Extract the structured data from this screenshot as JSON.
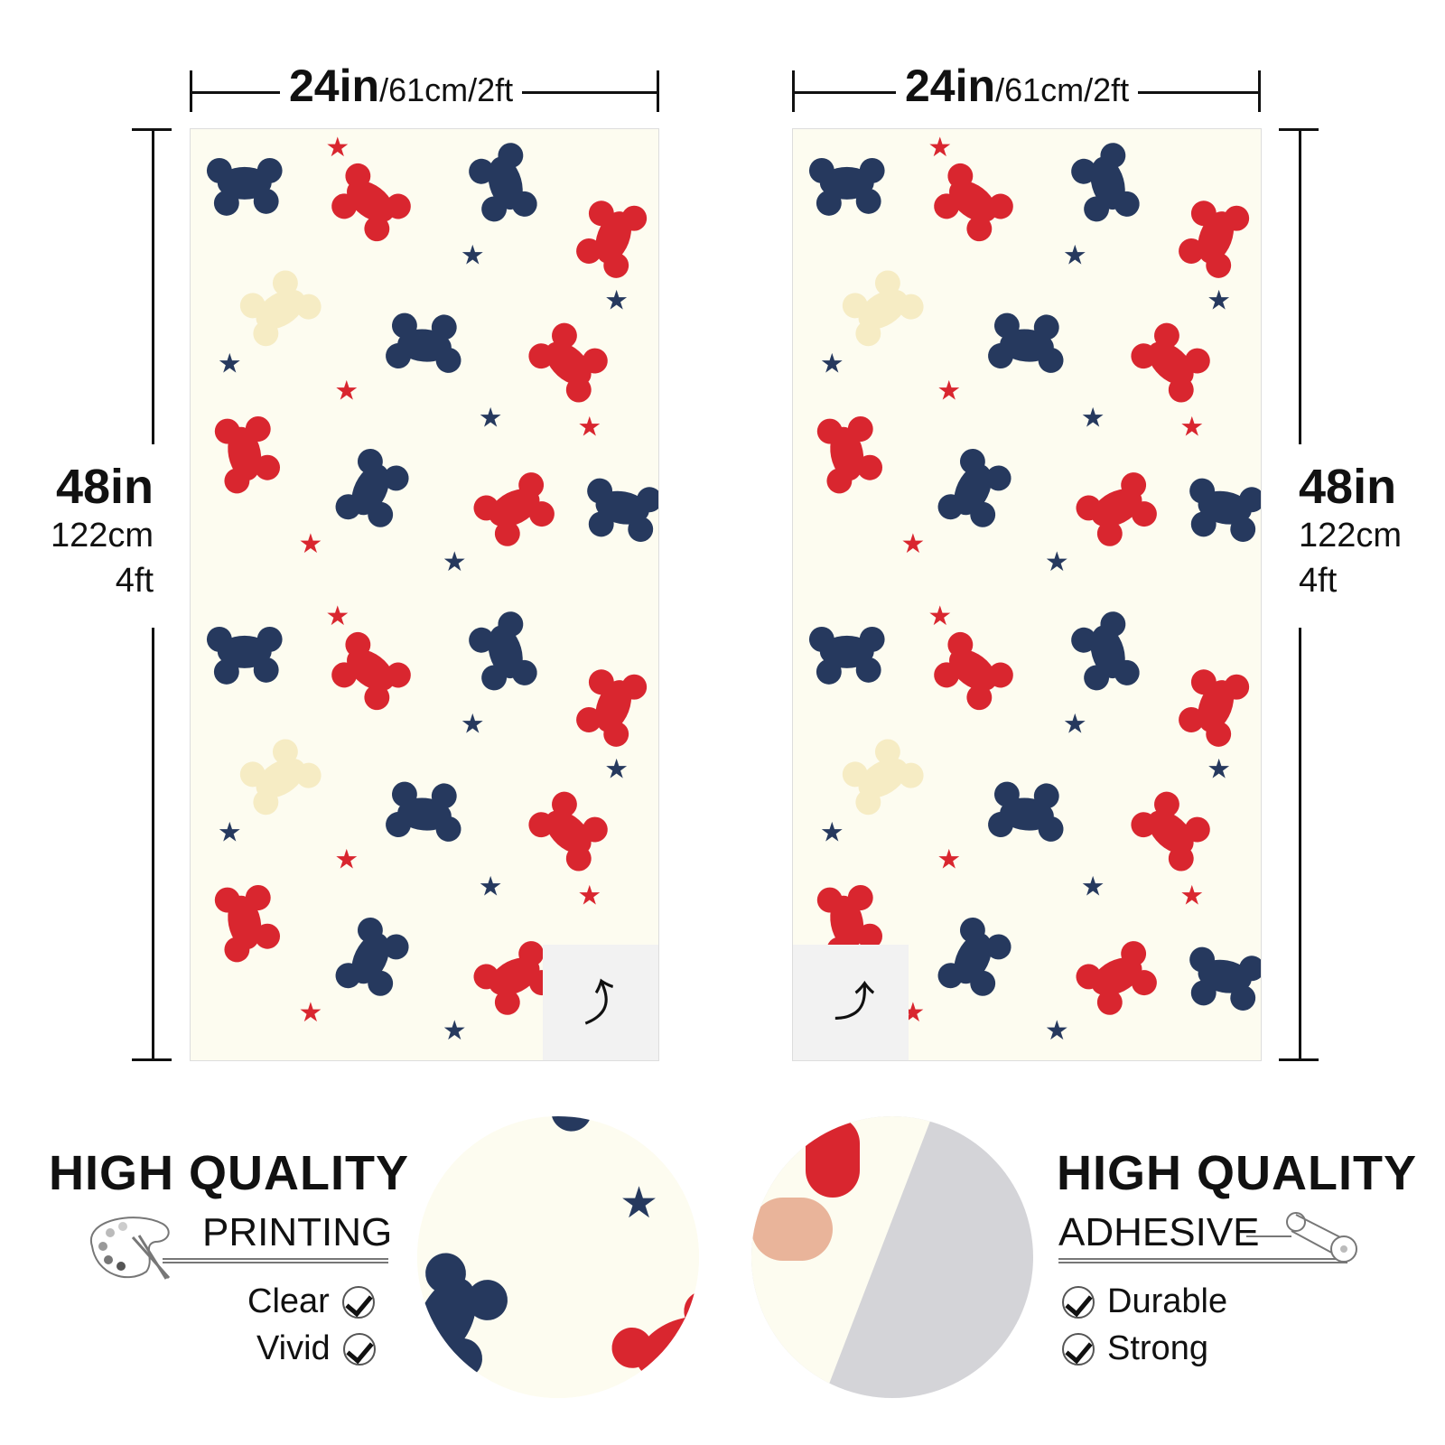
{
  "dimensions": {
    "width_main": "24in",
    "width_sub": "/61cm/2ft",
    "height_main": "48in",
    "height_cm": "122cm",
    "height_ft": "4ft"
  },
  "features": {
    "printing": {
      "title": "HIGH QUALITY",
      "subtitle": "PRINTING",
      "checks": [
        "Clear",
        "Vivid"
      ],
      "icon": "palette-icon"
    },
    "adhesive": {
      "title": "HIGH QUALITY",
      "subtitle": "ADHESIVE",
      "checks": [
        "Durable",
        "Strong"
      ],
      "icon": "roll-icon"
    }
  },
  "colors": {
    "red": "#d9262f",
    "navy": "#26395e",
    "cream": "#fdfcf0",
    "beige": "#f6ecc4"
  }
}
